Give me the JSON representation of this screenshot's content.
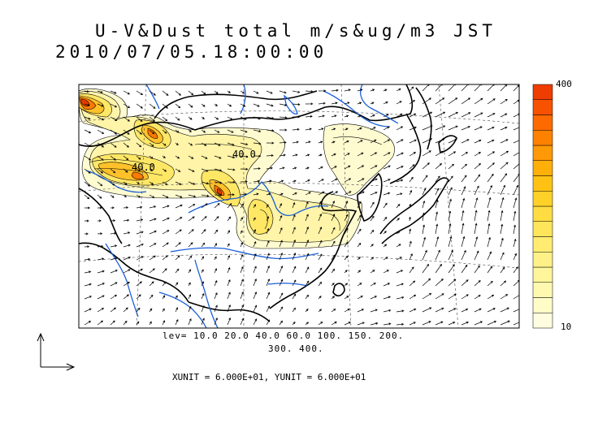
{
  "title": {
    "line1": "U-V&Dust total m/s&ug/m3 JST",
    "line2": "2010/07/05.18:00:00"
  },
  "contour_levels": {
    "line1": "lev= 10.0 20.0 40.0 60.0 100. 150. 200.",
    "line2": "300. 400."
  },
  "contour_labels": [
    "40.0",
    "40.0"
  ],
  "units": "XUNIT = 6.000E+01, YUNIT = 6.000E+01",
  "colorbar": {
    "max_label": "400",
    "min_label": "10",
    "colors": [
      "#fffddf",
      "#fffcc8",
      "#fff9b0",
      "#fff59a",
      "#fff187",
      "#ffec70",
      "#ffe55a",
      "#ffdc42",
      "#ffd128",
      "#ffc214",
      "#ffaf0a",
      "#ff9905",
      "#ff8100",
      "#ff6a00",
      "#f85200",
      "#ef3c00"
    ]
  },
  "colors": {
    "coastline": "#000000",
    "rivers": "#1a5fd8",
    "dust_light": "#fffbc4",
    "dust_mid": "#ffe35c",
    "dust_high": "#ff8a00",
    "dust_peak": "#e83800"
  }
}
